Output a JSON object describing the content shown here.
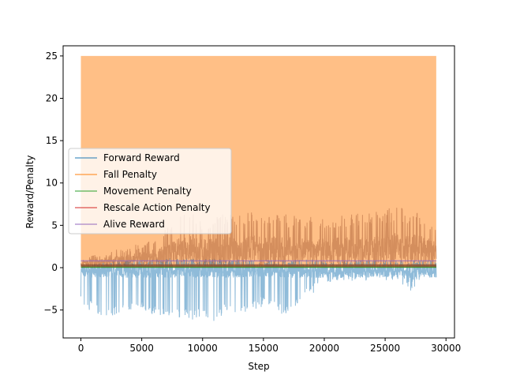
{
  "chart_data": {
    "type": "line",
    "title": "",
    "xlabel": "Step",
    "ylabel": "Reward/Penalty",
    "xlim": [
      -1460,
      30700
    ],
    "ylim": [
      -8.3,
      26.2
    ],
    "xticks": [
      0,
      5000,
      10000,
      15000,
      20000,
      25000,
      30000
    ],
    "xtick_labels": [
      "0",
      "5000",
      "10000",
      "15000",
      "20000",
      "25000",
      "30000"
    ],
    "yticks": [
      -5,
      0,
      5,
      10,
      15,
      20,
      25
    ],
    "ytick_labels": [
      "−5",
      "0",
      "5",
      "10",
      "15",
      "20",
      "25"
    ],
    "grid": false,
    "legend_position": "center-left",
    "x_max": 29200,
    "series": [
      {
        "name": "Forward Reward",
        "color": "#1f77b4",
        "description": "noisy signal, mostly -1 to 0 with deep negative spikes down to about -6.5 during steps 0-17000, stabilising around -1 to 0 after step 20000",
        "envelope_x": [
          0,
          1000,
          2000,
          3000,
          4000,
          5000,
          6000,
          7000,
          8000,
          9000,
          10000,
          11000,
          12000,
          13000,
          14000,
          15000,
          16000,
          17000,
          18000,
          19000,
          20000,
          22000,
          24000,
          26000,
          27000,
          28000,
          29200
        ],
        "envelope_low": [
          -4.5,
          -5.2,
          -5.8,
          -5.6,
          -5.3,
          -5.0,
          -5.6,
          -5.8,
          -6.0,
          -6.2,
          -5.8,
          -6.6,
          -5.2,
          -5.6,
          -5.0,
          -4.6,
          -5.2,
          -5.8,
          -3.8,
          -3.2,
          -1.8,
          -1.6,
          -1.6,
          -1.4,
          -3.0,
          -1.6,
          -1.4
        ],
        "envelope_high": [
          0.3,
          0.4,
          0.6,
          0.8,
          0.9,
          0.9,
          1.0,
          1.2,
          1.0,
          1.1,
          1.0,
          1.1,
          0.9,
          1.0,
          0.9,
          1.0,
          0.8,
          1.0,
          0.9,
          1.0,
          0.8,
          0.8,
          0.9,
          0.9,
          0.9,
          0.9,
          0.9
        ]
      },
      {
        "name": "Fall Penalty",
        "color": "#ff7f0e",
        "description": "rapidly alternating between about 0 and 25 across all steps, filling the band visually",
        "min_value": 0,
        "max_value": 25
      },
      {
        "name": "Movement Penalty",
        "color": "#2ca02c",
        "description": "flat near 0 with small fluctuations",
        "value": 0.05
      },
      {
        "name": "Rescale Action Penalty",
        "color": "#d62728",
        "description": "flat band between about 0 and 0.4",
        "min_value": 0.0,
        "max_value": 0.4
      },
      {
        "name": "Alive Reward",
        "color": "#9467bd",
        "description": "constant line near 0.8",
        "value": 0.8
      }
    ],
    "dark_overlay": {
      "description": "brown overlapped band rising from ~0.5 to peaks around 7 after step 8000",
      "envelope_x": [
        0,
        1000,
        2000,
        3000,
        4000,
        5000,
        6000,
        7000,
        8000,
        9000,
        10000,
        12000,
        14000,
        16000,
        18000,
        20000,
        22000,
        24000,
        26000,
        28000,
        29200
      ],
      "envelope_high": [
        0.8,
        1.5,
        1.6,
        2.2,
        2.5,
        3.0,
        3.6,
        4.6,
        6.0,
        6.6,
        5.8,
        6.4,
        6.6,
        6.4,
        6.2,
        6.0,
        6.2,
        6.8,
        7.2,
        6.6,
        5.2
      ]
    }
  }
}
